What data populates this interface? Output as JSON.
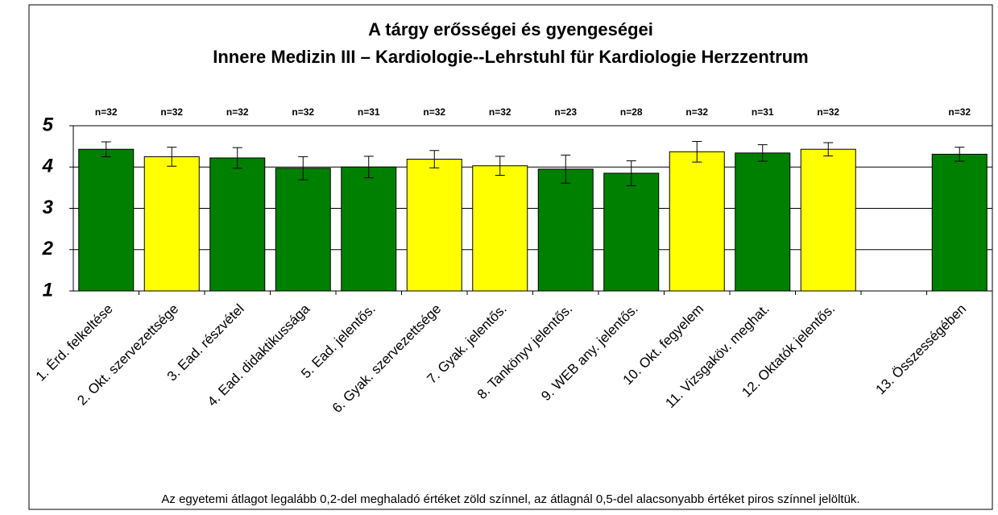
{
  "chart_data": {
    "type": "bar",
    "title": "A tárgy erősségei és gyengeségei",
    "subtitle": "Innere Medizin III – Kardiologie--Lehrstuhl für Kardiologie Herzzentrum",
    "categories": [
      "1. Érd. felkeltése",
      "2. Okt. szervezettsége",
      "3. Ead. részvétel",
      "4. Ead. didaktikussága",
      "5. Ead. jelentős.",
      "6. Gyak. szervezettsége",
      "7. Gyak. jelentős.",
      "8. Tankönyv jelentős.",
      "9. WEB any. jelentős.",
      "10. Okt. fegyelem",
      "11. Vizsgaköv. meghat.",
      "12. Oktatók jelentős.",
      null,
      "13. Összességében"
    ],
    "values": [
      4.43,
      4.25,
      4.22,
      3.97,
      4.0,
      4.19,
      4.03,
      3.95,
      3.85,
      4.37,
      4.34,
      4.43,
      null,
      4.31
    ],
    "errors": [
      0.18,
      0.23,
      0.25,
      0.28,
      0.26,
      0.21,
      0.23,
      0.34,
      0.3,
      0.25,
      0.2,
      0.16,
      null,
      0.17
    ],
    "colors": [
      "#008000",
      "#ffff00",
      "#008000",
      "#008000",
      "#008000",
      "#ffff00",
      "#ffff00",
      "#008000",
      "#008000",
      "#ffff00",
      "#008000",
      "#ffff00",
      null,
      "#008000"
    ],
    "annotations": [
      "n=32",
      "n=32",
      "n=32",
      "n=32",
      "n=31",
      "n=32",
      "n=32",
      "n=23",
      "n=28",
      "n=32",
      "n=31",
      "n=32",
      null,
      "n=32"
    ],
    "ylim": [
      1,
      5
    ],
    "yticks": [
      1,
      2,
      3,
      4,
      5
    ],
    "grid": true,
    "footnote": "Az egyetemi átlagot legalább 0,2-del meghaladó értéket zöld színnel, az átlagnál 0,5-del alacsonyabb értéket piros színnel jelöltük."
  }
}
